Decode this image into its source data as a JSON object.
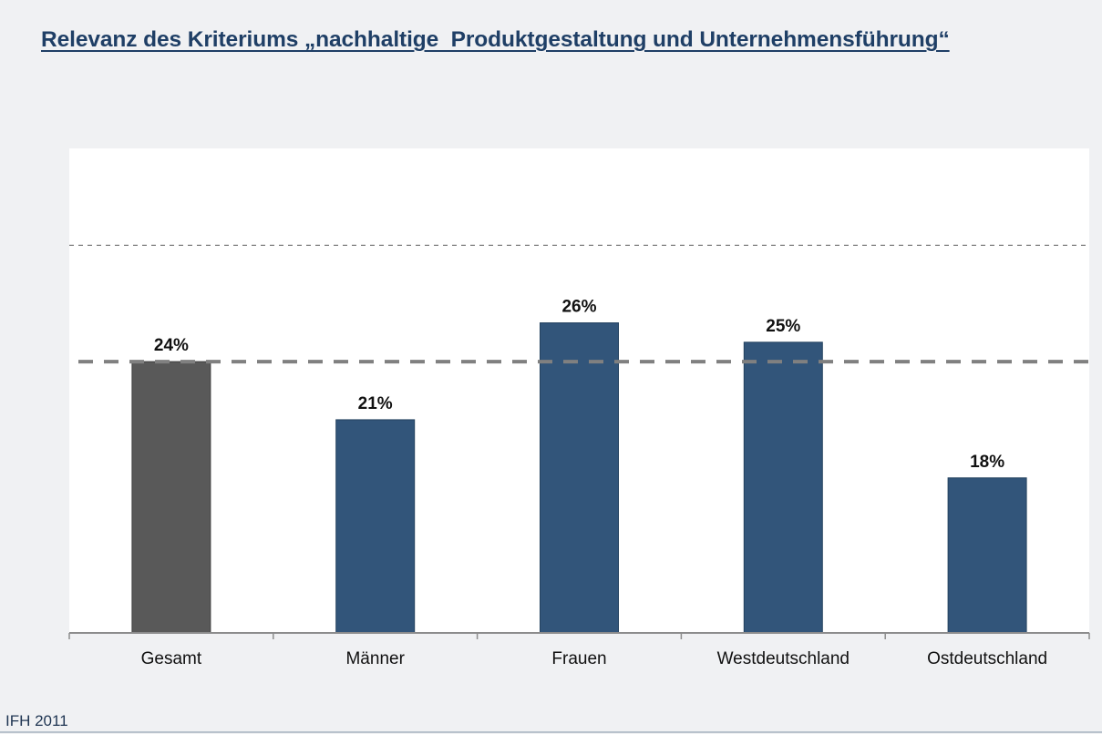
{
  "title": "Relevanz des Kriteriums „nachhaltige  Produktgestaltung und Unternehmensführung“",
  "footer": "IFH 2011",
  "colors": {
    "title": "#1f3f66",
    "highlight_bar": "#595959",
    "bar": "#32557a",
    "reference_line": "#808080",
    "gridline": "#7f7f7f"
  },
  "chart_data": {
    "type": "bar",
    "title": "Relevanz des Kriteriums „nachhaltige  Produktgestaltung und Unternehmensführung“",
    "xlabel": "",
    "ylabel": "",
    "categories": [
      "Gesamt",
      "Männer",
      "Frauen",
      "Westdeutschland",
      "Ostdeutschland"
    ],
    "values": [
      24,
      21,
      26,
      25,
      18
    ],
    "data_labels": [
      "24%",
      "21%",
      "26%",
      "25%",
      "18%"
    ],
    "highlight_index": 0,
    "unit": "%",
    "ylim": [
      10,
      35
    ],
    "y_axis_visible": false,
    "grid": false,
    "gridlines": [
      30
    ],
    "reference_line": {
      "value": 24,
      "label": "Gesamt",
      "style": "dashed"
    },
    "legend": "none"
  }
}
